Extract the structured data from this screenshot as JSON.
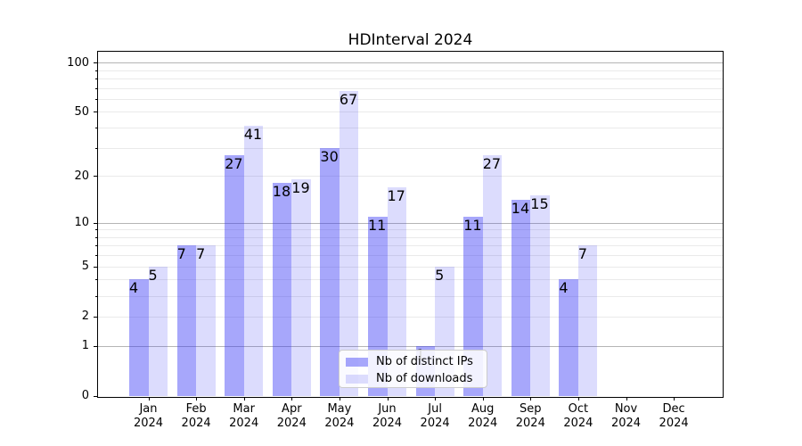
{
  "title": "HDInterval 2024",
  "chart_data": {
    "type": "bar",
    "title": "HDInterval 2024",
    "categories": [
      "Jan",
      "Feb",
      "Mar",
      "Apr",
      "May",
      "Jun",
      "Jul",
      "Aug",
      "Sep",
      "Oct",
      "Nov",
      "Dec"
    ],
    "year": "2024",
    "series": [
      {
        "name": "Nb of distinct IPs",
        "color": "rgba(50,50,245,0.43)",
        "values": [
          4,
          7,
          27,
          18,
          30,
          11,
          1,
          11,
          14,
          4,
          0,
          0
        ]
      },
      {
        "name": "Nb of downloads",
        "color": "rgba(50,50,245,0.17)",
        "values": [
          5,
          7,
          41,
          19,
          67,
          17,
          5,
          27,
          15,
          7,
          0,
          0
        ]
      }
    ],
    "yscale": "log1p",
    "ylim": [
      0,
      116
    ],
    "y_tick_values": [
      0,
      1,
      2,
      5,
      10,
      20,
      50,
      100
    ],
    "y_tick_labels": [
      "0",
      "1",
      "2",
      "5",
      "10",
      "20",
      "50",
      "100"
    ],
    "y_major_grid": [
      1,
      10,
      100
    ],
    "y_minor_grid": [
      2,
      3,
      4,
      5,
      6,
      7,
      8,
      9,
      20,
      30,
      40,
      50,
      60,
      70,
      80,
      90
    ],
    "grid": "on",
    "legend_position": "lower center",
    "colors": {
      "major_grid": "#b5b5b5",
      "minor_grid": "#eaeaea",
      "spine": "#000000",
      "text": "#000000",
      "legend_border": "#cccccc"
    }
  }
}
